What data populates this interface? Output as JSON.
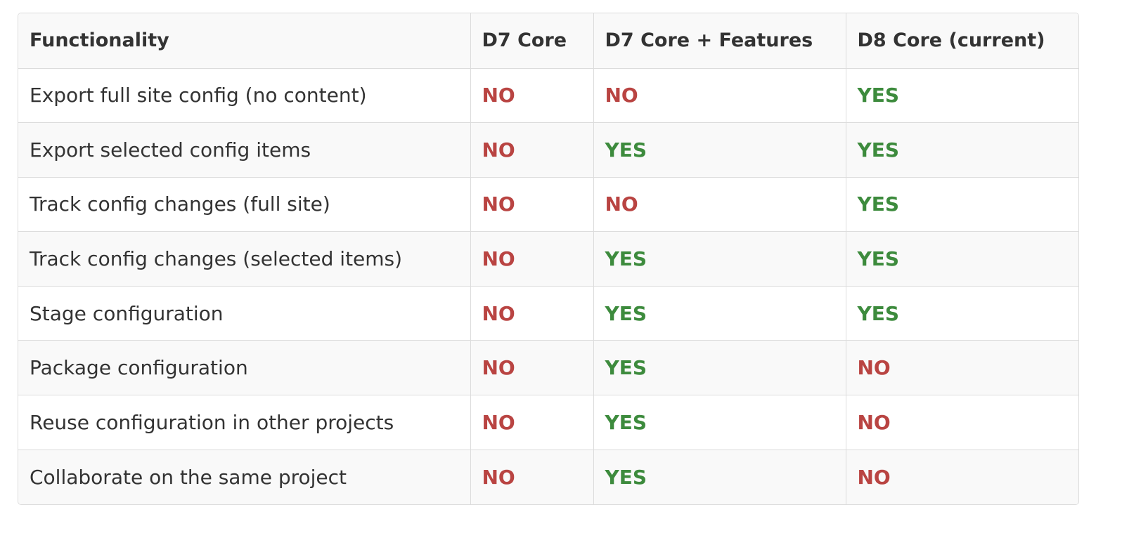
{
  "table": {
    "header": [
      "Functionality",
      "D7 Core",
      "D7 Core + Features",
      "D8 Core (current)"
    ],
    "rows": [
      [
        "Export full site config (no content)",
        "NO",
        "NO",
        "YES"
      ],
      [
        "Export selected config items",
        "NO",
        "YES",
        "YES"
      ],
      [
        "Track config changes (full site)",
        "NO",
        "NO",
        "YES"
      ],
      [
        "Track config changes (selected items)",
        "NO",
        "YES",
        "YES"
      ],
      [
        "Stage configuration",
        "NO",
        "YES",
        "YES"
      ],
      [
        "Package configuration",
        "NO",
        "YES",
        "NO"
      ],
      [
        "Reuse configuration in other projects",
        "NO",
        "YES",
        "NO"
      ],
      [
        "Collaborate on the same project",
        "NO",
        "YES",
        "NO"
      ]
    ]
  }
}
